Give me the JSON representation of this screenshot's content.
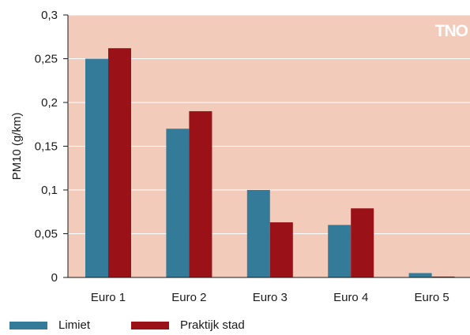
{
  "chart_data": {
    "type": "bar",
    "categories": [
      "Euro 1",
      "Euro 2",
      "Euro 3",
      "Euro 4",
      "Euro 5"
    ],
    "series": [
      {
        "name": "Limiet",
        "color": "#337b99",
        "values": [
          0.25,
          0.17,
          0.1,
          0.06,
          0.005
        ]
      },
      {
        "name": "Praktijk stad",
        "color": "#9a1117",
        "values": [
          0.262,
          0.19,
          0.063,
          0.079,
          0.001
        ]
      }
    ],
    "ylabel": "PM10 (g/km)",
    "xlabel": "",
    "ylim": [
      0,
      0.3
    ],
    "yticks": [
      0,
      0.05,
      0.1,
      0.15,
      0.2,
      0.25,
      0.3
    ],
    "ytick_labels": [
      "0",
      "0,05",
      "0,1",
      "0,15",
      "0,2",
      "0,25",
      "0,3"
    ],
    "plot_background": "#f2cbbb",
    "grid": true,
    "grid_color": "#ffffff",
    "legend_position": "bottom-left",
    "logo_text": "TNO"
  }
}
